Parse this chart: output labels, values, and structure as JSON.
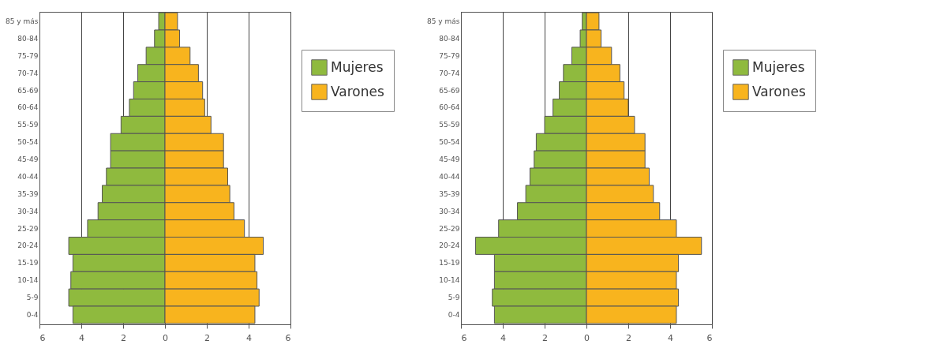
{
  "chart_data": [
    {
      "type": "bar",
      "orientation": "horizontal",
      "stacked": true,
      "categories": [
        "85 y más",
        "80-84",
        "75-79",
        "70-74",
        "65-69",
        "60-64",
        "55-59",
        "50-54",
        "45-49",
        "40-44",
        "35-39",
        "30-34",
        "25-29",
        "20-24",
        "15-19",
        "10-14",
        "5-9",
        "0-4"
      ],
      "series": [
        {
          "name": "Mujeres",
          "color": "#8fba3e",
          "values": [
            -0.3,
            -0.5,
            -0.9,
            -1.3,
            -1.5,
            -1.7,
            -2.1,
            -2.6,
            -2.6,
            -2.8,
            -3.0,
            -3.2,
            -3.7,
            -4.6,
            -4.4,
            -4.5,
            -4.6,
            -4.4
          ]
        },
        {
          "name": "Varones",
          "color": "#f8b41e",
          "values": [
            0.6,
            0.7,
            1.2,
            1.6,
            1.8,
            1.9,
            2.2,
            2.8,
            2.8,
            3.0,
            3.1,
            3.3,
            3.8,
            4.7,
            4.3,
            4.4,
            4.5,
            4.3
          ]
        }
      ],
      "xlim": [
        -6,
        6
      ],
      "xticks": [
        {
          "value": -6,
          "label": "6"
        },
        {
          "value": -4,
          "label": "4"
        },
        {
          "value": -2,
          "label": "2"
        },
        0,
        2,
        4,
        6
      ],
      "grid": "x",
      "legend": "right"
    },
    {
      "type": "bar",
      "orientation": "horizontal",
      "stacked": true,
      "categories": [
        "85 y más",
        "80-84",
        "75-79",
        "70-74",
        "65-69",
        "60-64",
        "55-59",
        "50-54",
        "45-49",
        "40-44",
        "35-39",
        "30-34",
        "25-29",
        "20-24",
        "15-19",
        "10-14",
        "5-9",
        "0-4"
      ],
      "series": [
        {
          "name": "Mujeres",
          "color": "#8fba3e",
          "values": [
            -0.2,
            -0.3,
            -0.7,
            -1.1,
            -1.3,
            -1.6,
            -2.0,
            -2.4,
            -2.5,
            -2.7,
            -2.9,
            -3.3,
            -4.2,
            -5.3,
            -4.4,
            -4.4,
            -4.5,
            -4.4
          ]
        },
        {
          "name": "Varones",
          "color": "#f8b41e",
          "values": [
            0.6,
            0.7,
            1.2,
            1.6,
            1.8,
            2.0,
            2.3,
            2.8,
            2.8,
            3.0,
            3.2,
            3.5,
            4.3,
            5.5,
            4.4,
            4.3,
            4.4,
            4.3
          ]
        }
      ],
      "xlim": [
        -6,
        6
      ],
      "xticks": [
        {
          "value": -6,
          "label": "6"
        },
        {
          "value": -4,
          "label": "4"
        },
        {
          "value": -2,
          "label": "2"
        },
        0,
        2,
        4,
        6
      ],
      "grid": "x",
      "legend": "right"
    }
  ]
}
